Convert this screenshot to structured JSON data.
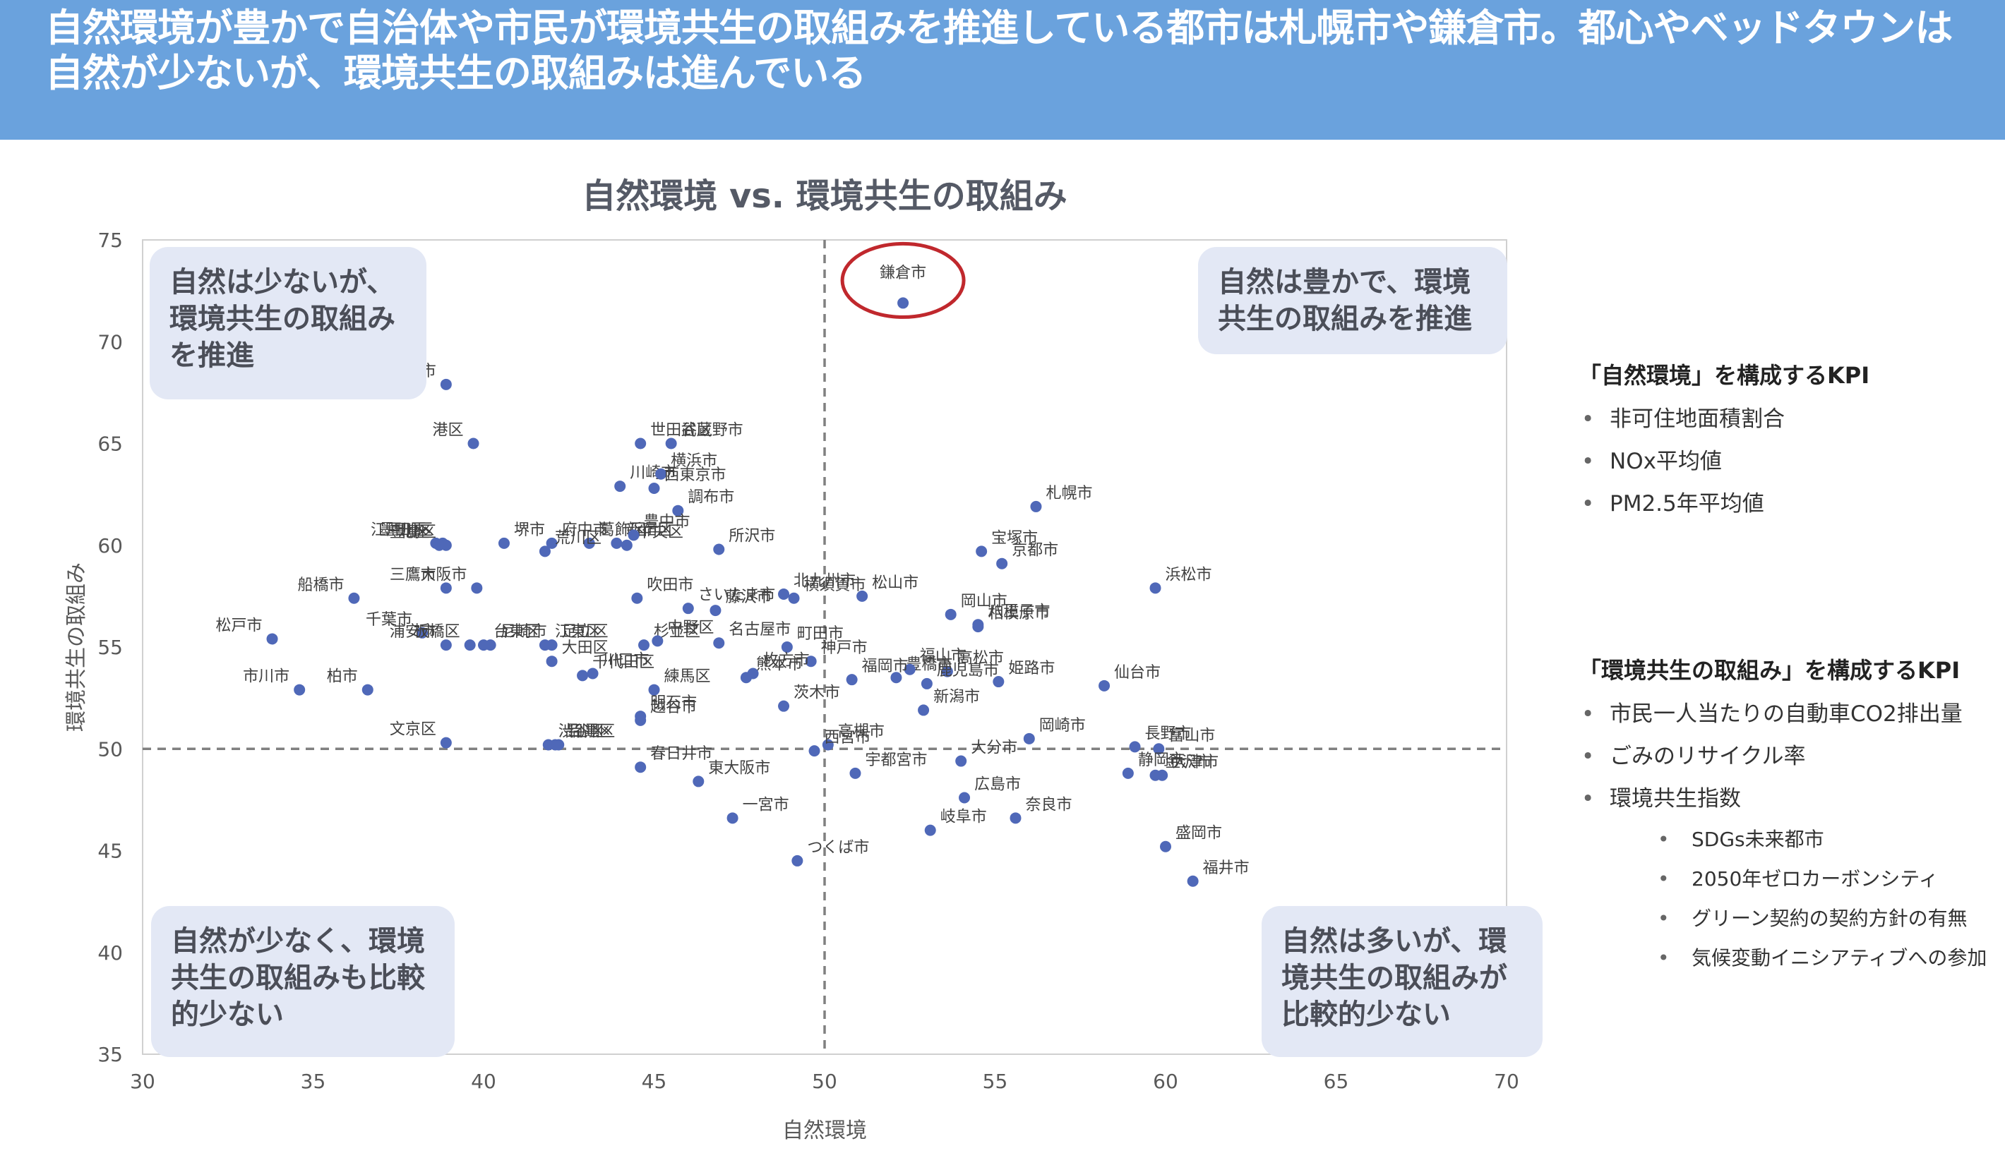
{
  "header": {
    "line1": "自然環境が豊かで自治体や市民が環境共生の取組みを推進している都市は札幌市や鎌倉市。都心やベッドタウンは",
    "line2": "自然が少ないが、環境共生の取組みは進んでいる"
  },
  "quadrants": {
    "top_left": "自然は少ないが、環境共生の取組みを推進",
    "top_right": "自然は豊かで、環境共生の取組みを推進",
    "bottom_left": "自然が少なく、環境共生の取組みも比較的少ない",
    "bottom_right": "自然は多いが、環境共生の取組みが比較的少ない"
  },
  "kpi_nature": {
    "title": "「自然環境」を構成するKPI",
    "items": [
      "非可住地面積割合",
      "NOx平均値",
      "PM2.5年平均値"
    ]
  },
  "kpi_env": {
    "title": "「環境共生の取組み」を構成するKPI",
    "items": [
      "市民一人当たりの自動車CO2排出量",
      "ごみのリサイクル率",
      "環境共生指数"
    ],
    "subitems": [
      "SDGs未来都市",
      "2050年ゼロカーボンシティ",
      "グリーン契約の契約方針の有無",
      "気候変動イニシアティブへの参加"
    ]
  },
  "colors": {
    "banner": "#6aa2dd",
    "point": "#4f68b8",
    "highlight": "#c0282d",
    "guide": "#808080"
  },
  "chart_data": {
    "type": "scatter",
    "title": "自然環境 vs. 環境共生の取組み",
    "xlabel": "自然環境",
    "ylabel": "環境共生の取組み",
    "xlim": [
      30,
      70
    ],
    "ylim": [
      35,
      75
    ],
    "xticks": [
      30,
      35,
      40,
      45,
      50,
      55,
      60,
      65,
      70
    ],
    "yticks": [
      35,
      40,
      45,
      50,
      55,
      60,
      65,
      70,
      75
    ],
    "reference_lines": {
      "x": 50,
      "y": 50
    },
    "highlight": "鎌倉市",
    "points": [
      {
        "name": "鎌倉市",
        "x": 52.3,
        "y": 71.9
      },
      {
        "name": "小金井市",
        "x": 38.9,
        "y": 67.9
      },
      {
        "name": "港区",
        "x": 39.7,
        "y": 65.0
      },
      {
        "name": "川崎市",
        "x": 44.0,
        "y": 62.9
      },
      {
        "name": "世田谷区",
        "x": 44.6,
        "y": 65.0
      },
      {
        "name": "新宿区",
        "x": 43.9,
        "y": 60.1
      },
      {
        "name": "葛飾区",
        "x": 43.1,
        "y": 60.1
      },
      {
        "name": "武蔵野市",
        "x": 45.5,
        "y": 65.0
      },
      {
        "name": "府中市",
        "x": 42.0,
        "y": 60.1
      },
      {
        "name": "荒川区",
        "x": 41.8,
        "y": 59.7
      },
      {
        "name": "横浜市",
        "x": 45.2,
        "y": 63.5
      },
      {
        "name": "墨田区",
        "x": 38.6,
        "y": 60.1
      },
      {
        "name": "江戸川区",
        "x": 38.8,
        "y": 60.1
      },
      {
        "name": "西東京市",
        "x": 45.0,
        "y": 62.8
      },
      {
        "name": "北区",
        "x": 38.7,
        "y": 60.0
      },
      {
        "name": "堺市",
        "x": 40.6,
        "y": 60.1
      },
      {
        "name": "調布市",
        "x": 45.7,
        "y": 61.7
      },
      {
        "name": "豊島区",
        "x": 38.9,
        "y": 60.0
      },
      {
        "name": "中央区",
        "x": 44.2,
        "y": 60.0
      },
      {
        "name": "豊中市",
        "x": 44.4,
        "y": 60.5
      },
      {
        "name": "所沢市",
        "x": 46.9,
        "y": 59.8
      },
      {
        "name": "北九州市",
        "x": 48.8,
        "y": 57.6
      },
      {
        "name": "横須賀市",
        "x": 49.1,
        "y": 57.4
      },
      {
        "name": "三鷹市",
        "x": 38.9,
        "y": 57.9
      },
      {
        "name": "大阪市",
        "x": 39.8,
        "y": 57.9
      },
      {
        "name": "吹田市",
        "x": 44.5,
        "y": 57.4
      },
      {
        "name": "さいたま市",
        "x": 46.0,
        "y": 56.9
      },
      {
        "name": "松山市",
        "x": 51.1,
        "y": 57.5
      },
      {
        "name": "札幌市",
        "x": 56.2,
        "y": 61.9
      },
      {
        "name": "宝塚市",
        "x": 54.6,
        "y": 59.7
      },
      {
        "name": "京都市",
        "x": 55.2,
        "y": 59.1
      },
      {
        "name": "浜松市",
        "x": 59.7,
        "y": 57.9
      },
      {
        "name": "船橋市",
        "x": 36.2,
        "y": 57.4
      },
      {
        "name": "藤沢市",
        "x": 46.8,
        "y": 56.8
      },
      {
        "name": "岡山市",
        "x": 53.7,
        "y": 56.6
      },
      {
        "name": "八王子市",
        "x": 54.5,
        "y": 56.1
      },
      {
        "name": "松戸市",
        "x": 33.8,
        "y": 55.4
      },
      {
        "name": "千葉市",
        "x": 38.2,
        "y": 55.7
      },
      {
        "name": "江東区",
        "x": 41.8,
        "y": 55.1
      },
      {
        "name": "足立区",
        "x": 42.0,
        "y": 55.1
      },
      {
        "name": "杉並区",
        "x": 44.7,
        "y": 55.1
      },
      {
        "name": "板橋区",
        "x": 39.6,
        "y": 55.1
      },
      {
        "name": "浦安市",
        "x": 38.9,
        "y": 55.1
      },
      {
        "name": "中野区",
        "x": 45.1,
        "y": 55.3
      },
      {
        "name": "町田市",
        "x": 48.9,
        "y": 55.0
      },
      {
        "name": "神戸市",
        "x": 49.6,
        "y": 54.3
      },
      {
        "name": "豊橋市",
        "x": 52.1,
        "y": 53.5
      },
      {
        "name": "相模原市",
        "x": 54.5,
        "y": 56.0
      },
      {
        "name": "福山市",
        "x": 52.5,
        "y": 53.9
      },
      {
        "name": "高松市",
        "x": 53.6,
        "y": 53.8
      },
      {
        "name": "台東区",
        "x": 40.0,
        "y": 55.1
      },
      {
        "name": "大田区",
        "x": 42.0,
        "y": 54.3
      },
      {
        "name": "名古屋市",
        "x": 46.9,
        "y": 55.2
      },
      {
        "name": "熊本市",
        "x": 47.7,
        "y": 53.5
      },
      {
        "name": "福岡市",
        "x": 50.8,
        "y": 53.4
      },
      {
        "name": "姫路市",
        "x": 55.1,
        "y": 53.3
      },
      {
        "name": "仙台市",
        "x": 58.2,
        "y": 53.1
      },
      {
        "name": "市川市",
        "x": 34.6,
        "y": 52.9
      },
      {
        "name": "柏市",
        "x": 36.6,
        "y": 52.9
      },
      {
        "name": "千代田区",
        "x": 42.9,
        "y": 53.6
      },
      {
        "name": "川口市",
        "x": 43.2,
        "y": 53.7
      },
      {
        "name": "枚方市",
        "x": 47.9,
        "y": 53.7
      },
      {
        "name": "練馬区",
        "x": 45.0,
        "y": 52.9
      },
      {
        "name": "鹿児島市",
        "x": 53.0,
        "y": 53.2
      },
      {
        "name": "尼崎市",
        "x": 40.2,
        "y": 55.1
      },
      {
        "name": "明石市",
        "x": 44.6,
        "y": 51.6
      },
      {
        "name": "茨木市",
        "x": 48.8,
        "y": 52.1
      },
      {
        "name": "新潟市",
        "x": 52.9,
        "y": 51.9
      },
      {
        "name": "岡崎市",
        "x": 56.0,
        "y": 50.5
      },
      {
        "name": "越谷市",
        "x": 44.6,
        "y": 51.4
      },
      {
        "name": "高槻市",
        "x": 50.1,
        "y": 50.2
      },
      {
        "name": "長野市",
        "x": 59.1,
        "y": 50.1
      },
      {
        "name": "富山市",
        "x": 59.8,
        "y": 50.0
      },
      {
        "name": "文京区",
        "x": 38.9,
        "y": 50.3
      },
      {
        "name": "渋谷区",
        "x": 41.9,
        "y": 50.2
      },
      {
        "name": "品川区",
        "x": 42.1,
        "y": 50.2
      },
      {
        "name": "目黒区",
        "x": 42.2,
        "y": 50.2
      },
      {
        "name": "春日井市",
        "x": 44.6,
        "y": 49.1
      },
      {
        "name": "西宮市",
        "x": 49.7,
        "y": 49.9
      },
      {
        "name": "大分市",
        "x": 54.0,
        "y": 49.4
      },
      {
        "name": "宇都宮市",
        "x": 50.9,
        "y": 48.8
      },
      {
        "name": "静岡市",
        "x": 58.9,
        "y": 48.8
      },
      {
        "name": "大津市",
        "x": 59.9,
        "y": 48.7
      },
      {
        "name": "金沢市",
        "x": 59.7,
        "y": 48.7
      },
      {
        "name": "東大阪市",
        "x": 46.3,
        "y": 48.4
      },
      {
        "name": "広島市",
        "x": 54.1,
        "y": 47.6
      },
      {
        "name": "一宮市",
        "x": 47.3,
        "y": 46.6
      },
      {
        "name": "奈良市",
        "x": 55.6,
        "y": 46.6
      },
      {
        "name": "岐阜市",
        "x": 53.1,
        "y": 46.0
      },
      {
        "name": "盛岡市",
        "x": 60.0,
        "y": 45.2
      },
      {
        "name": "つくば市",
        "x": 49.2,
        "y": 44.5
      },
      {
        "name": "福井市",
        "x": 60.8,
        "y": 43.5
      }
    ]
  }
}
